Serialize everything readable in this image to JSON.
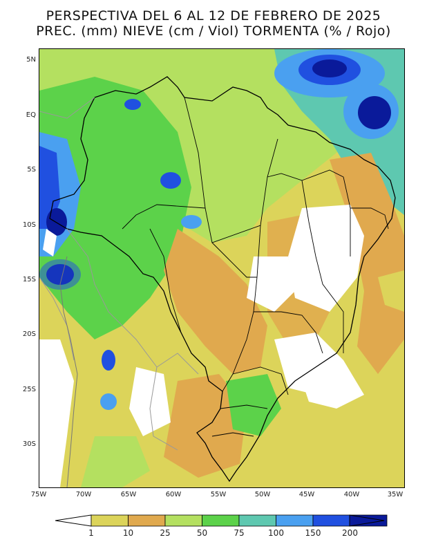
{
  "title": {
    "line1": "PERSPECTIVA DEL 6 AL 12 DE FEBRERO DE 2025",
    "line2": "PREC. (mm) NIEVE (cm / Viol) TORMENTA (% / Rojo)"
  },
  "map": {
    "lat_labels": [
      "5N",
      "EQ",
      "5S",
      "10S",
      "15S",
      "20S",
      "25S",
      "30S"
    ],
    "lon_labels": [
      "75W",
      "70W",
      "65W",
      "60W",
      "55W",
      "50W",
      "45W",
      "40W",
      "35W"
    ]
  },
  "colorbar": {
    "labels": [
      "1",
      "10",
      "25",
      "50",
      "75",
      "100",
      "150",
      "200"
    ],
    "colors": [
      "#dcd45a",
      "#e0a94e",
      "#b4e060",
      "#5cd24a",
      "#5ec8b0",
      "#4aa0f0",
      "#2050e0",
      "#0a1a9a"
    ]
  }
}
